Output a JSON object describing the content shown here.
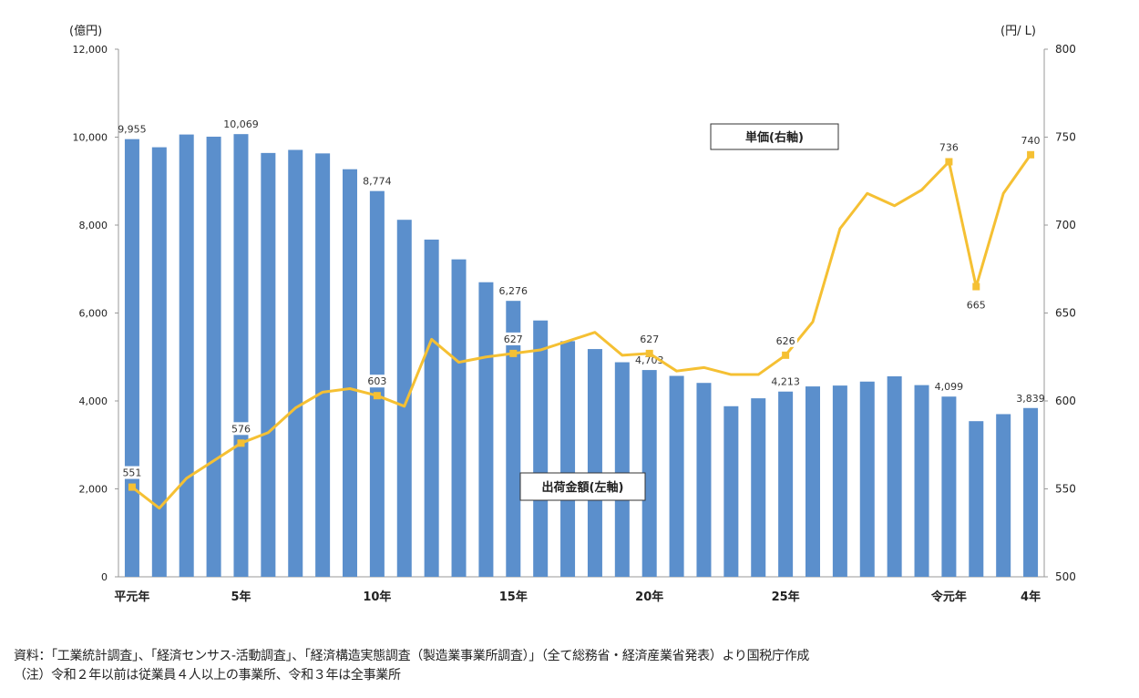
{
  "chart_data": {
    "type": "bar+line",
    "left_axis_unit": "(億円)",
    "right_axis_unit": "(円/ L)",
    "left_ylim": [
      0,
      12000
    ],
    "right_ylim": [
      500,
      800
    ],
    "left_ticks": [
      "0",
      "2,000",
      "4,000",
      "6,000",
      "8,000",
      "10,000",
      "12,000"
    ],
    "right_ticks": [
      "500",
      "550",
      "600",
      "650",
      "700",
      "750",
      "800"
    ],
    "x_tick_labels": [
      {
        "index": 0,
        "label": "平元年"
      },
      {
        "index": 4,
        "label": "5年"
      },
      {
        "index": 9,
        "label": "10年"
      },
      {
        "index": 14,
        "label": "15年"
      },
      {
        "index": 19,
        "label": "20年"
      },
      {
        "index": 24,
        "label": "25年"
      },
      {
        "index": 30,
        "label": "令元年"
      },
      {
        "index": 33,
        "label": "4年"
      }
    ],
    "grid": false,
    "series": [
      {
        "name": "出荷金額(左軸)",
        "type": "bar",
        "axis": "left",
        "color": "#5b8fcc",
        "values": [
          9955,
          9770,
          10060,
          10010,
          10069,
          9640,
          9710,
          9630,
          9270,
          8774,
          8120,
          7670,
          7220,
          6700,
          6276,
          5830,
          5360,
          5180,
          4880,
          4703,
          4570,
          4410,
          3880,
          4060,
          4213,
          4330,
          4350,
          4440,
          4560,
          4360,
          4099,
          3540,
          3700,
          3839
        ]
      },
      {
        "name": "単価(右軸)",
        "type": "line",
        "axis": "right",
        "color": "#f5c033",
        "values": [
          551,
          539,
          556,
          566,
          576,
          582,
          596,
          605,
          607,
          603,
          597,
          635,
          622,
          625,
          627,
          629,
          634,
          639,
          626,
          627,
          617,
          619,
          615,
          615,
          626,
          645,
          698,
          718,
          711,
          720,
          736,
          665,
          718,
          740
        ]
      }
    ],
    "bar_data_labels": [
      {
        "index": 0,
        "text": "9,955"
      },
      {
        "index": 4,
        "text": "10,069"
      },
      {
        "index": 9,
        "text": "8,774"
      },
      {
        "index": 14,
        "text": "6,276"
      },
      {
        "index": 19,
        "text": "4,703"
      },
      {
        "index": 24,
        "text": "4,213"
      },
      {
        "index": 30,
        "text": "4,099"
      },
      {
        "index": 33,
        "text": "3,839"
      }
    ],
    "line_data_labels": [
      {
        "index": 0,
        "text": "551"
      },
      {
        "index": 4,
        "text": "576"
      },
      {
        "index": 9,
        "text": "603"
      },
      {
        "index": 14,
        "text": "627"
      },
      {
        "index": 19,
        "text": "627"
      },
      {
        "index": 24,
        "text": "626"
      },
      {
        "index": 30,
        "text": "736"
      },
      {
        "index": 31,
        "text": "665"
      },
      {
        "index": 33,
        "text": "740"
      }
    ],
    "series_callouts": [
      "単価(右軸)",
      "出荷金額(左軸)"
    ]
  },
  "notes": {
    "source": "資料：「工業統計調査」、「経済センサス‐活動調査」、「経済構造実態調査（製造業事業所調査）」（全て総務省・経済産業省発表）より国税庁作成",
    "note": "（注）令和２年以前は従業員４人以上の事業所、令和３年は全事業所"
  }
}
